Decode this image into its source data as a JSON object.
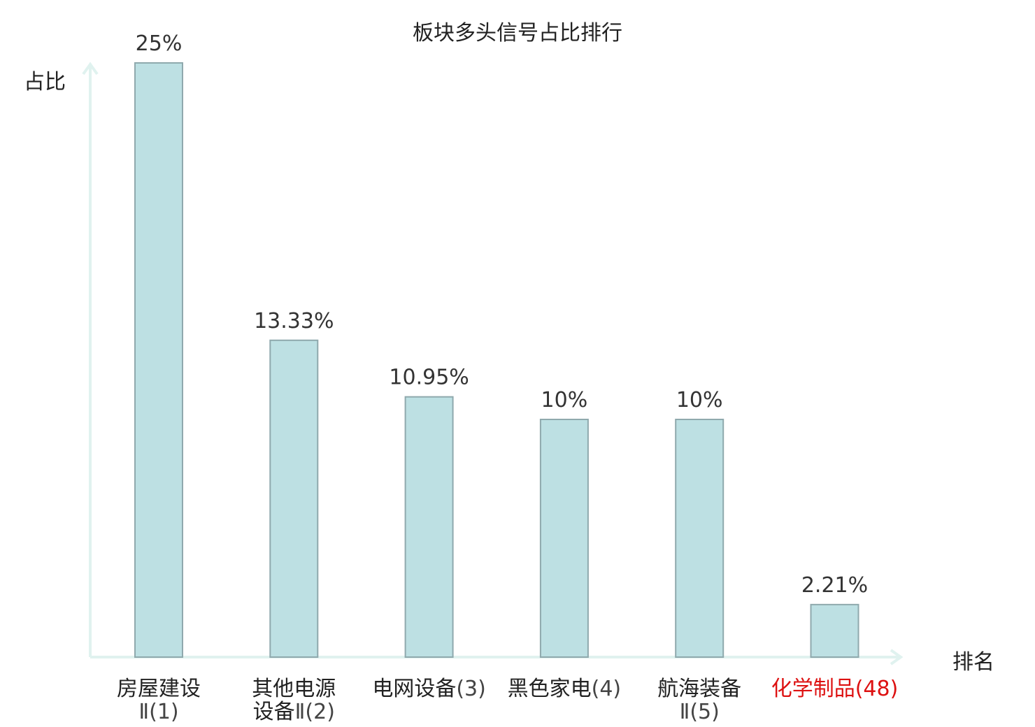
{
  "chart_data": {
    "type": "bar",
    "title": "板块多头信号占比排行",
    "xlabel": "排名",
    "ylabel": "占比",
    "ylim": [
      0,
      25
    ],
    "categories": [
      {
        "lines": [
          "房屋建设",
          "Ⅱ(1)"
        ],
        "highlight": false
      },
      {
        "lines": [
          "其他电源",
          "设备Ⅱ(2)"
        ],
        "highlight": false
      },
      {
        "lines": [
          "电网设备(3)"
        ],
        "highlight": false
      },
      {
        "lines": [
          "黑色家电(4)"
        ],
        "highlight": false
      },
      {
        "lines": [
          "航海装备",
          "Ⅱ(5)"
        ],
        "highlight": false
      },
      {
        "lines": [
          "化学制品(48)"
        ],
        "highlight": true
      }
    ],
    "values": [
      25,
      13.33,
      10.95,
      10,
      10,
      2.21
    ],
    "value_labels": [
      "25%",
      "13.33%",
      "10.95%",
      "10%",
      "10%",
      "2.21%"
    ],
    "grid": false,
    "legend": "none",
    "colors": {
      "bar_fill": "#bde0e3",
      "bar_stroke": "#8fa9ad",
      "axis": "#e0f2ef",
      "text": "#222222",
      "value_text": "#333333",
      "tick_text": "#444444",
      "highlight": "#dd1111"
    }
  }
}
